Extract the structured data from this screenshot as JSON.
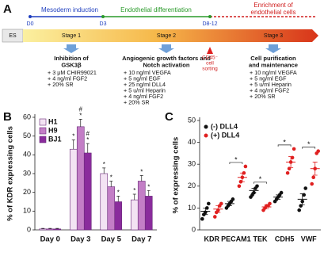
{
  "panel_a": {
    "label": "A",
    "phases": [
      {
        "text": [
          "Mesoderm induction"
        ],
        "color": "#1f3fbf"
      },
      {
        "text": [
          "Endothelial differentiation"
        ],
        "color": "#2a9a2a"
      },
      {
        "text": [
          "Enrichment of",
          "endothelial cells"
        ],
        "color": "#d02020"
      }
    ],
    "timepoints": [
      "D0",
      "D3",
      "D8-12"
    ],
    "start": "ES",
    "stages": [
      {
        "name": "Stage 1",
        "title": [
          "Inhibition of",
          "GSK3β"
        ],
        "items": [
          "+ 3 μM CHIR99021",
          "+ 4 ng/ml FGF2",
          "+ 20% SR"
        ]
      },
      {
        "name": "Stage 2",
        "title": [
          "Angiogenic growth factors and",
          "Notch activation"
        ],
        "items": [
          "+ 10 ng/ml VEGFA",
          "+ 5 ng/ml EGF",
          "+ 25 ng/ml DLL4",
          "+ 5 u/ml Heparin",
          "+ 4 ng/ml FGF2",
          "+ 20% SR"
        ]
      },
      {
        "name": "Stage 3",
        "title": [
          "Cell purification",
          "and maintenance"
        ],
        "items": [
          "+ 10 ng/ml VEGFA",
          "+ 5 ng/ml EGF",
          "+ 5 u/ml Heparin",
          "+ 4 ng/ml FGF2",
          "+ 20% SR"
        ]
      }
    ],
    "sorting": [
      "CD45⁻",
      "cell",
      "sorting"
    ]
  },
  "chart_data": [
    {
      "type": "bar",
      "panel": "B",
      "y_label": "% of KDR expressing cells",
      "categories": [
        "Day 0",
        "Day 3",
        "Day 5",
        "Day 7"
      ],
      "ylim": [
        0,
        60
      ],
      "yticks": [
        0,
        10,
        20,
        30,
        40,
        50,
        60
      ],
      "legend": "top-left",
      "series": [
        {
          "name": "H1",
          "color": "#f3e3f3",
          "values": [
            0.5,
            43,
            30,
            16
          ],
          "errors": [
            0.3,
            5,
            3,
            3
          ],
          "marks": [
            [],
            [
              "*"
            ],
            [
              "*"
            ],
            [
              "*"
            ]
          ]
        },
        {
          "name": "H9",
          "color": "#c37ec6",
          "values": [
            0.5,
            55,
            23,
            26
          ],
          "errors": [
            0.3,
            4,
            3,
            3
          ],
          "marks": [
            [],
            [
              "*",
              "#"
            ],
            [
              "*"
            ],
            [
              "*"
            ]
          ]
        },
        {
          "name": "BJ1",
          "color": "#8a2c9c",
          "values": [
            0.5,
            41,
            15,
            18
          ],
          "errors": [
            0.3,
            5,
            3,
            3
          ],
          "marks": [
            [],
            [
              "*",
              "#"
            ],
            [
              "*"
            ],
            [
              "*"
            ]
          ]
        }
      ]
    },
    {
      "type": "dot",
      "panel": "C",
      "y_label": "% of expressing cells",
      "categories": [
        "KDR",
        "PECAM1",
        "TEK",
        "CDH5",
        "VWF"
      ],
      "ylim": [
        0,
        50
      ],
      "yticks": [
        0,
        10,
        20,
        30,
        40,
        50
      ],
      "legend": "top-left",
      "significance": [
        null,
        "*",
        "*",
        "*",
        "*"
      ],
      "series": [
        {
          "name": "(-) DLL4",
          "color": "#111111",
          "means": [
            8.5,
            12,
            18,
            15,
            14
          ],
          "errors": [
            1.5,
            1,
            1,
            1,
            2.5
          ],
          "points": [
            [
              5,
              7,
              8,
              10,
              12
            ],
            [
              10,
              11,
              12,
              13,
              14
            ],
            [
              15,
              16,
              17,
              19,
              20
            ],
            [
              13,
              14,
              15,
              16,
              17
            ],
            [
              9,
              11,
              13,
              16,
              19
            ]
          ]
        },
        {
          "name": "(+) DLL4",
          "color": "#e02020",
          "means": [
            9.5,
            24,
            10.5,
            31,
            28
          ],
          "errors": [
            1.5,
            2,
            0.8,
            2.5,
            3
          ],
          "points": [
            [
              6,
              8,
              9,
              11,
              12
            ],
            [
              20,
              22,
              24,
              26,
              29
            ],
            [
              9,
              10,
              11,
              11,
              12
            ],
            [
              26,
              28,
              31,
              33,
              37
            ],
            [
              21,
              24,
              28,
              35,
              36
            ]
          ]
        }
      ]
    }
  ]
}
